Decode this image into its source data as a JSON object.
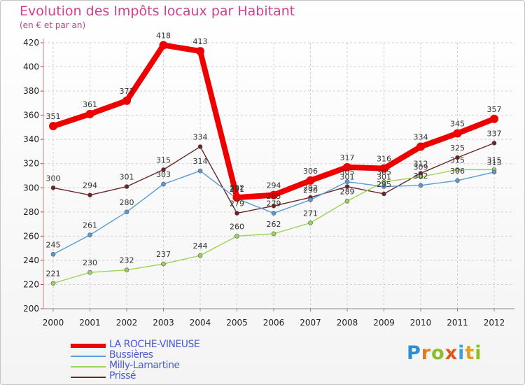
{
  "header": {
    "title": "Evolution des Impôts locaux par Habitant",
    "subtitle": "(en € et par an)"
  },
  "logo": {
    "text": [
      "P",
      "r",
      "o",
      "x",
      "i",
      "t",
      "i"
    ],
    "colors": [
      "#2a8fd6",
      "#e07a1f",
      "#8cbd2a",
      "#e05a1f",
      "#3ea0e0",
      "#e0a020",
      "#8cbd2a"
    ]
  },
  "chart_data": {
    "type": "line",
    "title": "Evolution des Impôts locaux par Habitant",
    "subtitle": "(en € et par an)",
    "xlabel": "",
    "ylabel": "",
    "x": [
      "2000",
      "2001",
      "2002",
      "2003",
      "2004",
      "2005",
      "2006",
      "2007",
      "2008",
      "2009",
      "2010",
      "2011",
      "2012"
    ],
    "ylim": [
      200,
      420
    ],
    "yticks": [
      200,
      220,
      240,
      260,
      280,
      300,
      320,
      340,
      360,
      380,
      400,
      420
    ],
    "grid": true,
    "legend_position": "bottom-left",
    "series": [
      {
        "name": "LA ROCHE-VINEUSE",
        "color": "#ee0000",
        "values": [
          351,
          361,
          372,
          418,
          413,
          292,
          294,
          306,
          317,
          316,
          334,
          345,
          357
        ]
      },
      {
        "name": "Bussières",
        "color": "#5b9bd5",
        "values": [
          245,
          261,
          280,
          303,
          314,
          291,
          279,
          290,
          305,
          301,
          302,
          306,
          313
        ]
      },
      {
        "name": "Milly-Lamartine",
        "color": "#9ad45a",
        "values": [
          221,
          230,
          232,
          237,
          244,
          260,
          262,
          271,
          289,
          305,
          309,
          315,
          315
        ]
      },
      {
        "name": "Prissé",
        "color": "#6b2525",
        "values": [
          300,
          294,
          301,
          315,
          334,
          279,
          285,
          292,
          301,
          295,
          312,
          325,
          337
        ]
      }
    ]
  }
}
